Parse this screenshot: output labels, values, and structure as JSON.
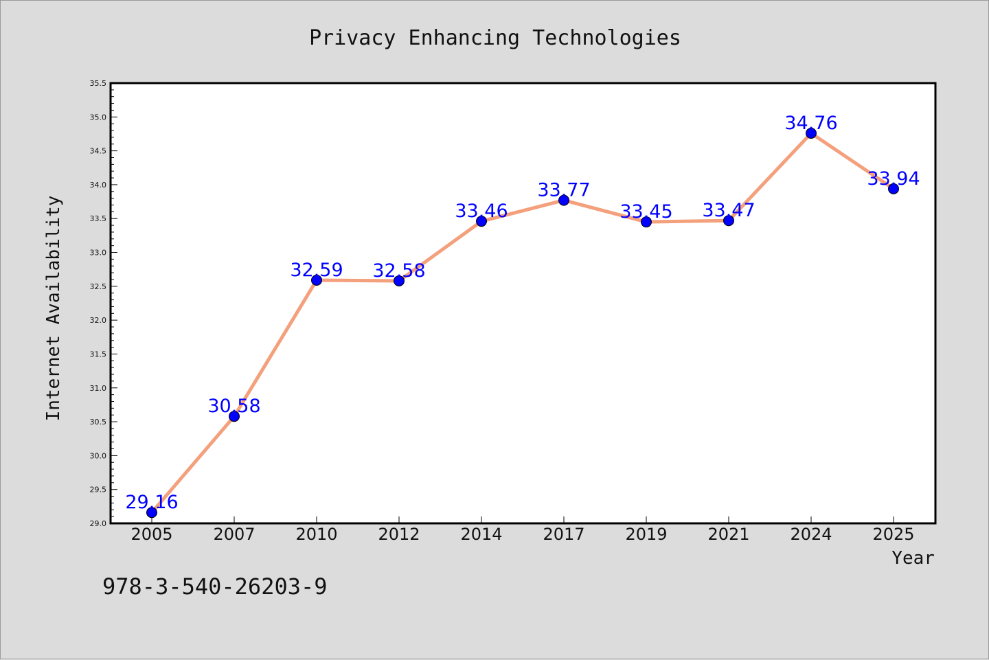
{
  "chart_data": {
    "type": "line",
    "title": "Privacy Enhancing Technologies",
    "xlabel": "Year",
    "ylabel": "Internet Availability",
    "categories": [
      "2005",
      "2007",
      "2010",
      "2012",
      "2014",
      "2017",
      "2019",
      "2021",
      "2024",
      "2025"
    ],
    "series": [
      {
        "values": [
          29.16,
          30.58,
          32.59,
          32.58,
          33.46,
          33.77,
          33.45,
          33.47,
          34.76,
          33.94
        ],
        "data_labels": [
          "29.16",
          "30.58",
          "32.59",
          "32.58",
          "33.46",
          "33.77",
          "33.45",
          "33.47",
          "34.76",
          "33.94"
        ],
        "line_color": "#f4a07c",
        "marker_color": "#0000ff"
      }
    ],
    "ylim": [
      29.0,
      35.5
    ],
    "yticks": [
      "29.0",
      "29.5",
      "30.0",
      "30.5",
      "31.0",
      "31.5",
      "32.0",
      "32.5",
      "33.0",
      "33.5",
      "34.0",
      "34.5",
      "35.0",
      "35.5"
    ],
    "grid": false,
    "legend": "none",
    "footnote": "978-3-540-26203-9",
    "colors": {
      "background": "#dcdcdc",
      "plot_background": "#ffffff",
      "label_color": "#0000ff"
    }
  }
}
